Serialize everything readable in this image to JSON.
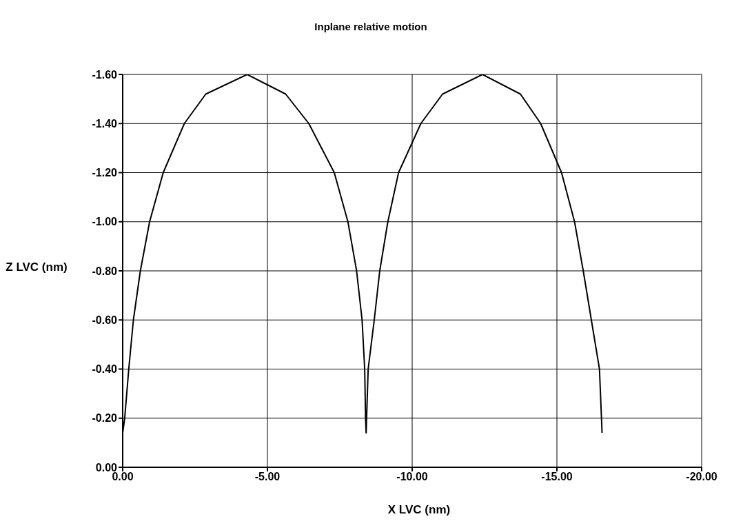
{
  "chart_data": {
    "type": "line",
    "title": "Inplane relative motion",
    "xlabel": "X LVC (nm)",
    "ylabel": "Z LVC (nm)",
    "series": [
      {
        "color": "#000000",
        "x": [
          0,
          -0.07,
          -0.21,
          -0.37,
          -0.61,
          -0.93,
          -1.4,
          -2.13,
          -2.87,
          -4.3,
          -5.63,
          -6.43,
          -7.31,
          -7.78,
          -8.08,
          -8.27,
          -8.36,
          -8.39,
          -8.41,
          -8.48,
          -8.69,
          -8.88,
          -9.16,
          -9.53,
          -10.3,
          -11.05,
          -12.43,
          -13.74,
          -14.44,
          -15.16,
          -15.61,
          -15.91,
          -16.19,
          -16.47,
          -16.54,
          -16.56
        ],
        "values": [
          -0.14,
          -0.2,
          -0.4,
          -0.6,
          -0.8,
          -1.0,
          -1.2,
          -1.4,
          -1.52,
          -1.6,
          -1.52,
          -1.4,
          -1.2,
          -1.0,
          -0.8,
          -0.6,
          -0.4,
          -0.2,
          -0.14,
          -0.4,
          -0.6,
          -0.8,
          -1.0,
          -1.2,
          -1.4,
          -1.52,
          -1.6,
          -1.52,
          -1.4,
          -1.2,
          -1.0,
          -0.8,
          -0.6,
          -0.4,
          -0.2,
          -0.14
        ]
      }
    ],
    "xlim": [
      0,
      -20
    ],
    "xticks": [
      {
        "value": 0,
        "label": "0.00"
      },
      {
        "value": -5,
        "label": "-5.00"
      },
      {
        "value": -10,
        "label": "-10.00"
      },
      {
        "value": -15,
        "label": "-15.00"
      },
      {
        "value": -20,
        "label": "-20.00"
      }
    ],
    "ylim": [
      0,
      -1.6
    ],
    "yticks": [
      {
        "value": 0,
        "label": "0.00"
      },
      {
        "value": -0.2,
        "label": "-0.20"
      },
      {
        "value": -0.4,
        "label": "-0.40"
      },
      {
        "value": -0.6,
        "label": "-0.60"
      },
      {
        "value": -0.8,
        "label": "-0.80"
      },
      {
        "value": -1.0,
        "label": "-1.00"
      },
      {
        "value": -1.2,
        "label": "-1.20"
      },
      {
        "value": -1.4,
        "label": "-1.40"
      },
      {
        "value": -1.6,
        "label": "-1.60"
      }
    ],
    "grid": true,
    "legend": false,
    "marker": "none",
    "line_style": "solid"
  }
}
